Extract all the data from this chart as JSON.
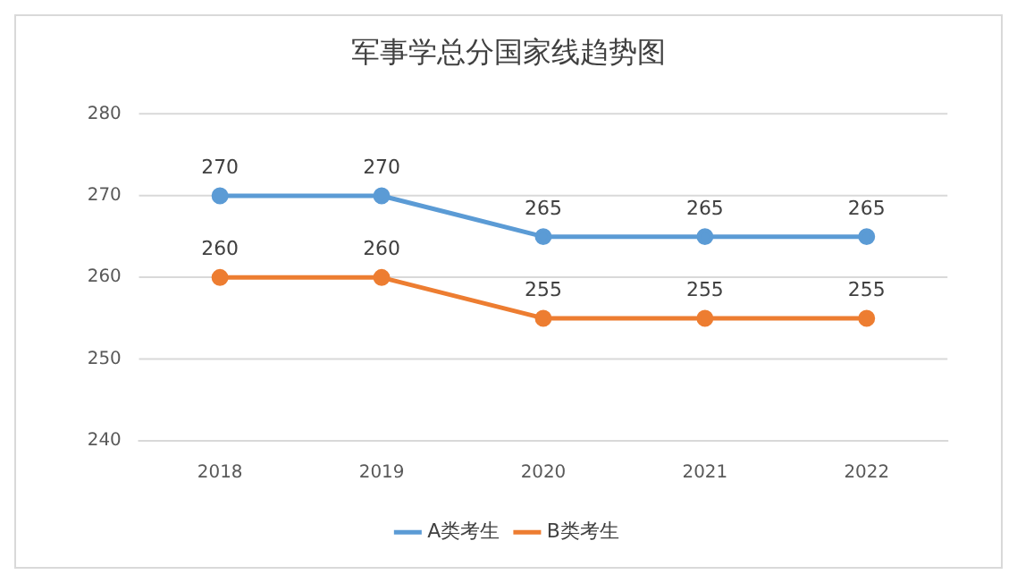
{
  "chart_data": {
    "type": "line",
    "title": "军事学总分国家线趋势图",
    "categories": [
      "2018",
      "2019",
      "2020",
      "2021",
      "2022"
    ],
    "series": [
      {
        "name": "A类考生",
        "color": "#5b9bd5",
        "values": [
          270,
          270,
          265,
          265,
          265
        ]
      },
      {
        "name": "B类考生",
        "color": "#ed7d31",
        "values": [
          260,
          260,
          255,
          255,
          255
        ]
      }
    ],
    "ylim": [
      240,
      280
    ],
    "yticks": [
      240,
      250,
      260,
      270,
      280
    ],
    "grid": "y",
    "legend": "bottom",
    "marker": "circle",
    "line_style": "solid",
    "data_labels": true
  }
}
